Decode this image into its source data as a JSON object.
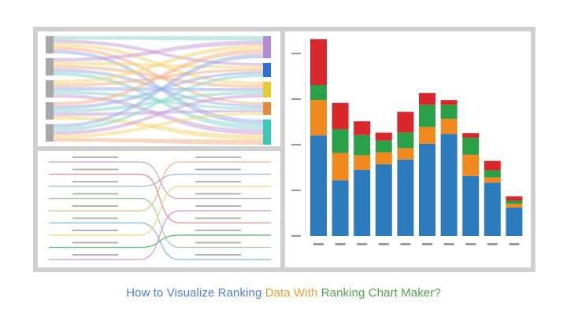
{
  "caption": {
    "part1": "How to Visualize Ranking ",
    "part2": "Data With ",
    "part3": "Ranking Chart Maker?"
  },
  "colors": {
    "caption_blue": "#4a7fd6",
    "caption_orange": "#f0a030",
    "caption_green": "#4aa84a",
    "bar_blue": "#2b7bbd",
    "bar_orange": "#f0891e",
    "bar_green": "#2ca048",
    "bar_red": "#d8282c"
  },
  "chart_data": [
    {
      "type": "sankey",
      "nodes_left": 5,
      "flow_colors": [
        "#8fd9d0",
        "#c9a3d8",
        "#f2d77a",
        "#f3b58a",
        "#9fb4e6"
      ],
      "target_colors": [
        "#b48ad6",
        "#2f6fd6",
        "#e8cc30",
        "#e08a3c",
        "#3cc7b8"
      ]
    },
    {
      "type": "bump",
      "ranks": 9,
      "line_colors": [
        "#c9a3d8",
        "#e58a8a",
        "#9fb4e6",
        "#8fd3a0",
        "#f3b58a",
        "#7fb8e8",
        "#f2d77a",
        "#5cb85c",
        "#d98fd0"
      ]
    },
    {
      "type": "bar",
      "stacked": true,
      "categories": [
        "",
        "",
        "",
        "",
        "",
        "",
        "",
        "",
        "",
        ""
      ],
      "series": [
        {
          "color": "#2b7bbd",
          "values": [
            213,
            118,
            140,
            152,
            162,
            195,
            216,
            127,
            113,
            60
          ]
        },
        {
          "color": "#f0891e",
          "values": [
            75,
            58,
            31,
            25,
            24,
            36,
            32,
            45,
            11,
            8
          ]
        },
        {
          "color": "#2ca048",
          "values": [
            32,
            50,
            43,
            25,
            33,
            47,
            30,
            36,
            15,
            7
          ]
        },
        {
          "color": "#d8282c",
          "values": [
            97,
            56,
            29,
            17,
            44,
            25,
            10,
            10,
            20,
            9
          ]
        }
      ],
      "ylim": [
        0,
        430
      ],
      "grid": false,
      "legend": "none"
    }
  ]
}
